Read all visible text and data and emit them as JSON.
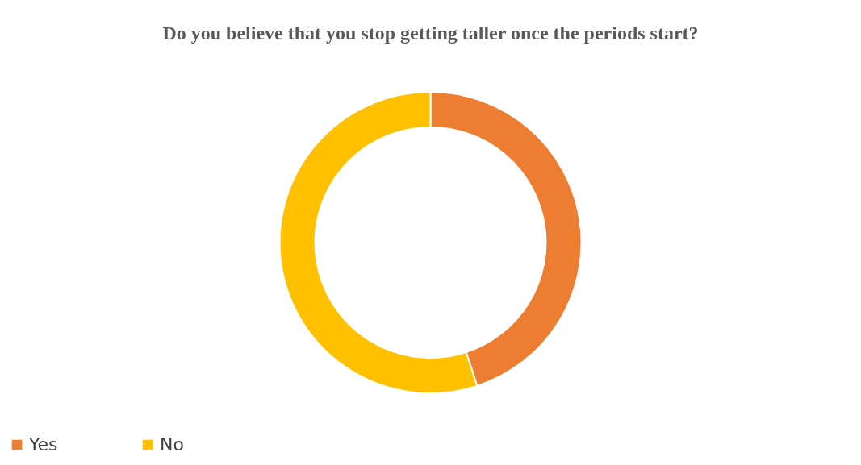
{
  "chart_data": {
    "type": "donut",
    "title": "Do you believe that you stop getting taller once the periods start?",
    "categories": [
      "Yes",
      "No"
    ],
    "values": [
      45,
      55
    ],
    "colors": [
      "#ed7d31",
      "#ffc000"
    ],
    "legend": "bottom"
  }
}
